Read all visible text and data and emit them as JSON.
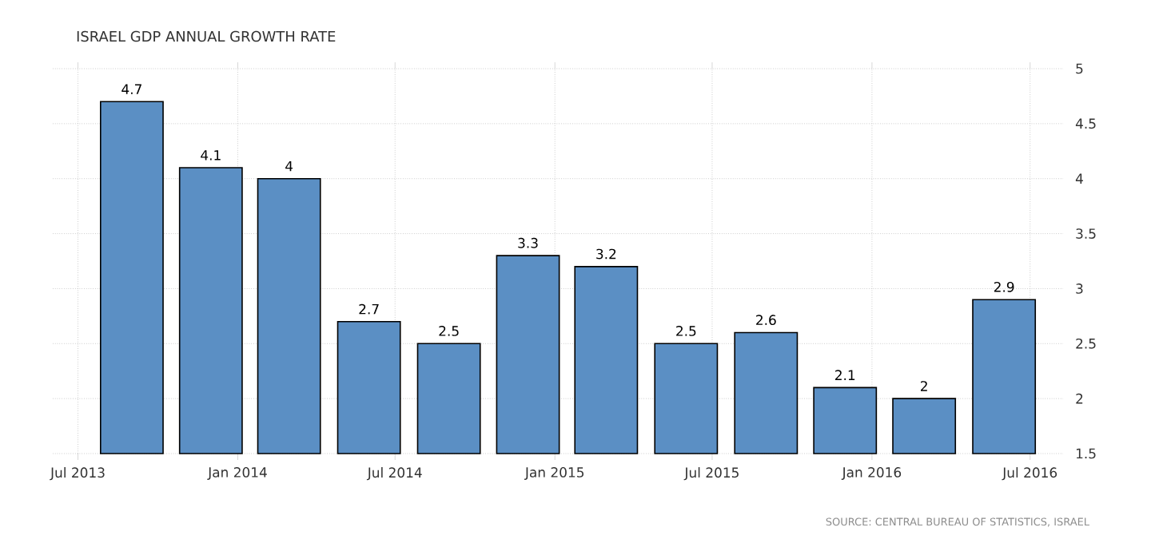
{
  "chart_data": {
    "type": "bar",
    "title": "ISRAEL GDP ANNUAL GROWTH RATE",
    "x": [
      "2013-09-01",
      "2013-12-01",
      "2014-03-01",
      "2014-06-01",
      "2014-09-01",
      "2014-12-01",
      "2015-03-01",
      "2015-06-01",
      "2015-09-01",
      "2015-12-01",
      "2016-03-01",
      "2016-06-01"
    ],
    "values": [
      4.7,
      4.1,
      4,
      2.7,
      2.5,
      3.3,
      3.2,
      2.5,
      2.6,
      2.1,
      2,
      2.9
    ],
    "color": "#5b8fc4",
    "data_labels": true,
    "grid": true,
    "xlim": [
      "2013-06-02",
      "2016-08-08"
    ],
    "xticks": [
      {
        "value": "2013-07-01",
        "label": "Jul 2013"
      },
      {
        "value": "2014-01-01",
        "label": "Jan 2014"
      },
      {
        "value": "2014-07-01",
        "label": "Jul 2014"
      },
      {
        "value": "2015-01-01",
        "label": "Jan 2015"
      },
      {
        "value": "2015-07-01",
        "label": "Jul 2015"
      },
      {
        "value": "2016-01-01",
        "label": "Jan 2016"
      },
      {
        "value": "2016-07-01",
        "label": "Jul 2016"
      }
    ],
    "ylim": [
      1.5,
      5
    ],
    "yticks": [
      1.5,
      2,
      2.5,
      3,
      3.5,
      4,
      4.5,
      5
    ],
    "annotations": [
      "SOURCE: CENTRAL BUREAU OF STATISTICS, ISRAEL"
    ]
  }
}
